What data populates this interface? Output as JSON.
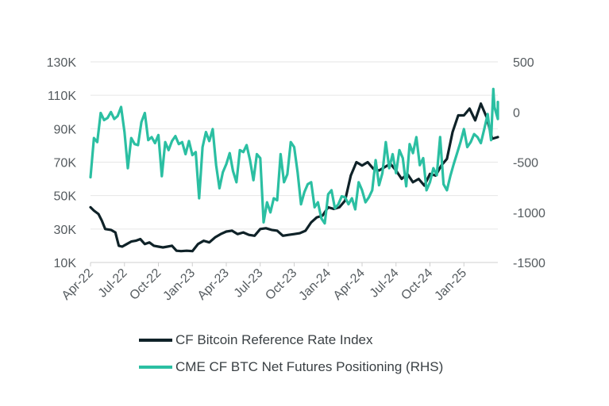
{
  "chart_data": {
    "type": "line",
    "title": "",
    "grid": true,
    "x_tick_labels": [
      "Apr-22",
      "Jul-22",
      "Oct-22",
      "Jan-23",
      "Apr-23",
      "Jul-23",
      "Oct-23",
      "Jan-24",
      "Apr-24",
      "Jul-24",
      "Oct-24",
      "Jan-25"
    ],
    "y_left": {
      "min": 10000,
      "max": 130000,
      "ticks": [
        10000,
        30000,
        50000,
        70000,
        90000,
        110000,
        130000
      ],
      "tick_labels": [
        "10K",
        "30K",
        "50K",
        "70K",
        "90K",
        "110K",
        "130K"
      ]
    },
    "y_right": {
      "min": -1500,
      "max": 500,
      "ticks": [
        -1500,
        -1000,
        -500,
        0,
        500
      ],
      "tick_labels": [
        "-1500",
        "-1000",
        "-500",
        "0",
        "500"
      ]
    },
    "x_range": [
      0,
      36
    ],
    "series": [
      {
        "name": "CF Bitcoin Reference Rate Index",
        "axis": "left",
        "color": "#0f2228",
        "points": [
          [
            0,
            43000
          ],
          [
            0.3,
            41000
          ],
          [
            0.7,
            39000
          ],
          [
            1.0,
            35000
          ],
          [
            1.3,
            30000
          ],
          [
            1.8,
            29500
          ],
          [
            2.2,
            28000
          ],
          [
            2.5,
            20000
          ],
          [
            2.8,
            19500
          ],
          [
            3.2,
            21000
          ],
          [
            3.6,
            22500
          ],
          [
            4.0,
            23000
          ],
          [
            4.4,
            24000
          ],
          [
            4.8,
            21000
          ],
          [
            5.2,
            22000
          ],
          [
            5.6,
            20000
          ],
          [
            6.0,
            19500
          ],
          [
            6.4,
            19000
          ],
          [
            6.8,
            19500
          ],
          [
            7.2,
            20000
          ],
          [
            7.6,
            17000
          ],
          [
            8.0,
            16800
          ],
          [
            8.5,
            17000
          ],
          [
            9.0,
            16800
          ],
          [
            9.5,
            21000
          ],
          [
            10.0,
            23000
          ],
          [
            10.5,
            22000
          ],
          [
            11.0,
            25000
          ],
          [
            11.5,
            27000
          ],
          [
            12.0,
            28500
          ],
          [
            12.5,
            29000
          ],
          [
            13.0,
            27000
          ],
          [
            13.5,
            28000
          ],
          [
            14.0,
            26500
          ],
          [
            14.5,
            26000
          ],
          [
            15.0,
            30000
          ],
          [
            15.5,
            30500
          ],
          [
            16.0,
            29500
          ],
          [
            16.5,
            29000
          ],
          [
            17.0,
            26000
          ],
          [
            17.5,
            26500
          ],
          [
            18.0,
            27000
          ],
          [
            18.5,
            27500
          ],
          [
            19.0,
            29000
          ],
          [
            19.5,
            34000
          ],
          [
            20.0,
            37000
          ],
          [
            20.5,
            38000
          ],
          [
            21.0,
            43000
          ],
          [
            21.5,
            42000
          ],
          [
            22.0,
            43000
          ],
          [
            22.5,
            47000
          ],
          [
            23.0,
            62000
          ],
          [
            23.5,
            70000
          ],
          [
            24.0,
            68000
          ],
          [
            24.5,
            70000
          ],
          [
            25.0,
            66000
          ],
          [
            25.5,
            65000
          ],
          [
            26.0,
            67000
          ],
          [
            26.5,
            69000
          ],
          [
            27.0,
            65000
          ],
          [
            27.5,
            60000
          ],
          [
            28.0,
            63000
          ],
          [
            28.5,
            58000
          ],
          [
            29.0,
            60000
          ],
          [
            29.5,
            56000
          ],
          [
            30.0,
            63000
          ],
          [
            30.5,
            62000
          ],
          [
            31.0,
            68000
          ],
          [
            31.5,
            72000
          ],
          [
            32.0,
            88000
          ],
          [
            32.5,
            98000
          ],
          [
            33.0,
            98000
          ],
          [
            33.5,
            102000
          ],
          [
            34.0,
            95000
          ],
          [
            34.5,
            105000
          ],
          [
            35.0,
            97000
          ],
          [
            35.5,
            84000
          ],
          [
            36.0,
            85000
          ]
        ]
      },
      {
        "name": "CME CF BTC Net Futures Positioning  (RHS)",
        "axis": "right",
        "color": "#2bbfa2",
        "points": [
          [
            0,
            -650
          ],
          [
            0.3,
            -260
          ],
          [
            0.6,
            -300
          ],
          [
            0.9,
            -10
          ],
          [
            1.2,
            -80
          ],
          [
            1.5,
            -60
          ],
          [
            1.8,
            0
          ],
          [
            2.1,
            -70
          ],
          [
            2.4,
            -40
          ],
          [
            2.7,
            50
          ],
          [
            3.0,
            -200
          ],
          [
            3.3,
            -560
          ],
          [
            3.6,
            -260
          ],
          [
            3.9,
            -320
          ],
          [
            4.2,
            -330
          ],
          [
            4.5,
            -100
          ],
          [
            4.8,
            -10
          ],
          [
            5.1,
            -280
          ],
          [
            5.4,
            -250
          ],
          [
            5.7,
            -310
          ],
          [
            6.0,
            -230
          ],
          [
            6.3,
            -640
          ],
          [
            6.6,
            -300
          ],
          [
            6.9,
            -380
          ],
          [
            7.2,
            -290
          ],
          [
            7.5,
            -240
          ],
          [
            7.8,
            -320
          ],
          [
            8.1,
            -300
          ],
          [
            8.4,
            -420
          ],
          [
            8.7,
            -290
          ],
          [
            9.0,
            -430
          ],
          [
            9.3,
            -400
          ],
          [
            9.6,
            -860
          ],
          [
            9.9,
            -350
          ],
          [
            10.2,
            -200
          ],
          [
            10.5,
            -290
          ],
          [
            10.8,
            -170
          ],
          [
            11.1,
            -530
          ],
          [
            11.4,
            -760
          ],
          [
            11.7,
            -600
          ],
          [
            12.0,
            -520
          ],
          [
            12.3,
            -410
          ],
          [
            12.6,
            -590
          ],
          [
            12.9,
            -700
          ],
          [
            13.2,
            -380
          ],
          [
            13.5,
            -400
          ],
          [
            13.8,
            -330
          ],
          [
            14.1,
            -480
          ],
          [
            14.4,
            -680
          ],
          [
            14.7,
            -420
          ],
          [
            15.0,
            -460
          ],
          [
            15.3,
            -1100
          ],
          [
            15.6,
            -900
          ],
          [
            15.9,
            -1000
          ],
          [
            16.2,
            -860
          ],
          [
            16.5,
            -880
          ],
          [
            16.8,
            -420
          ],
          [
            17.1,
            -700
          ],
          [
            17.4,
            -620
          ],
          [
            17.7,
            -300
          ],
          [
            18.0,
            -350
          ],
          [
            18.3,
            -600
          ],
          [
            18.6,
            -920
          ],
          [
            18.9,
            -800
          ],
          [
            19.2,
            -720
          ],
          [
            19.5,
            -700
          ],
          [
            19.8,
            -950
          ],
          [
            20.1,
            -900
          ],
          [
            20.4,
            -1060
          ],
          [
            20.7,
            -1110
          ],
          [
            21.0,
            -820
          ],
          [
            21.3,
            -780
          ],
          [
            21.6,
            -960
          ],
          [
            21.9,
            -920
          ],
          [
            22.2,
            -840
          ],
          [
            22.5,
            -850
          ],
          [
            22.8,
            -920
          ],
          [
            23.1,
            -860
          ],
          [
            23.4,
            -970
          ],
          [
            23.7,
            -700
          ],
          [
            24.0,
            -780
          ],
          [
            24.3,
            -900
          ],
          [
            24.6,
            -850
          ],
          [
            24.9,
            -780
          ],
          [
            25.2,
            -480
          ],
          [
            25.5,
            -730
          ],
          [
            25.8,
            -610
          ],
          [
            26.1,
            -300
          ],
          [
            26.4,
            -560
          ],
          [
            26.7,
            -420
          ],
          [
            27.0,
            -610
          ],
          [
            27.3,
            -380
          ],
          [
            27.6,
            -460
          ],
          [
            27.9,
            -740
          ],
          [
            28.2,
            -320
          ],
          [
            28.5,
            -410
          ],
          [
            28.8,
            -250
          ],
          [
            29.1,
            -530
          ],
          [
            29.4,
            -460
          ],
          [
            29.7,
            -780
          ],
          [
            30.0,
            -700
          ],
          [
            30.3,
            -560
          ],
          [
            30.6,
            -630
          ],
          [
            30.9,
            -250
          ],
          [
            31.2,
            -720
          ],
          [
            31.5,
            -780
          ],
          [
            31.8,
            -640
          ],
          [
            32.1,
            -520
          ],
          [
            32.4,
            -410
          ],
          [
            32.7,
            -300
          ],
          [
            33.0,
            -170
          ],
          [
            33.3,
            -350
          ],
          [
            33.6,
            -300
          ],
          [
            33.9,
            -220
          ],
          [
            34.2,
            -250
          ],
          [
            34.5,
            -310
          ],
          [
            34.8,
            -170
          ],
          [
            35.1,
            -20
          ],
          [
            35.4,
            -280
          ],
          [
            35.7,
            50
          ],
          [
            36.0,
            -70
          ],
          [
            35.6,
            230
          ],
          [
            36.0,
            100
          ]
        ]
      }
    ]
  }
}
